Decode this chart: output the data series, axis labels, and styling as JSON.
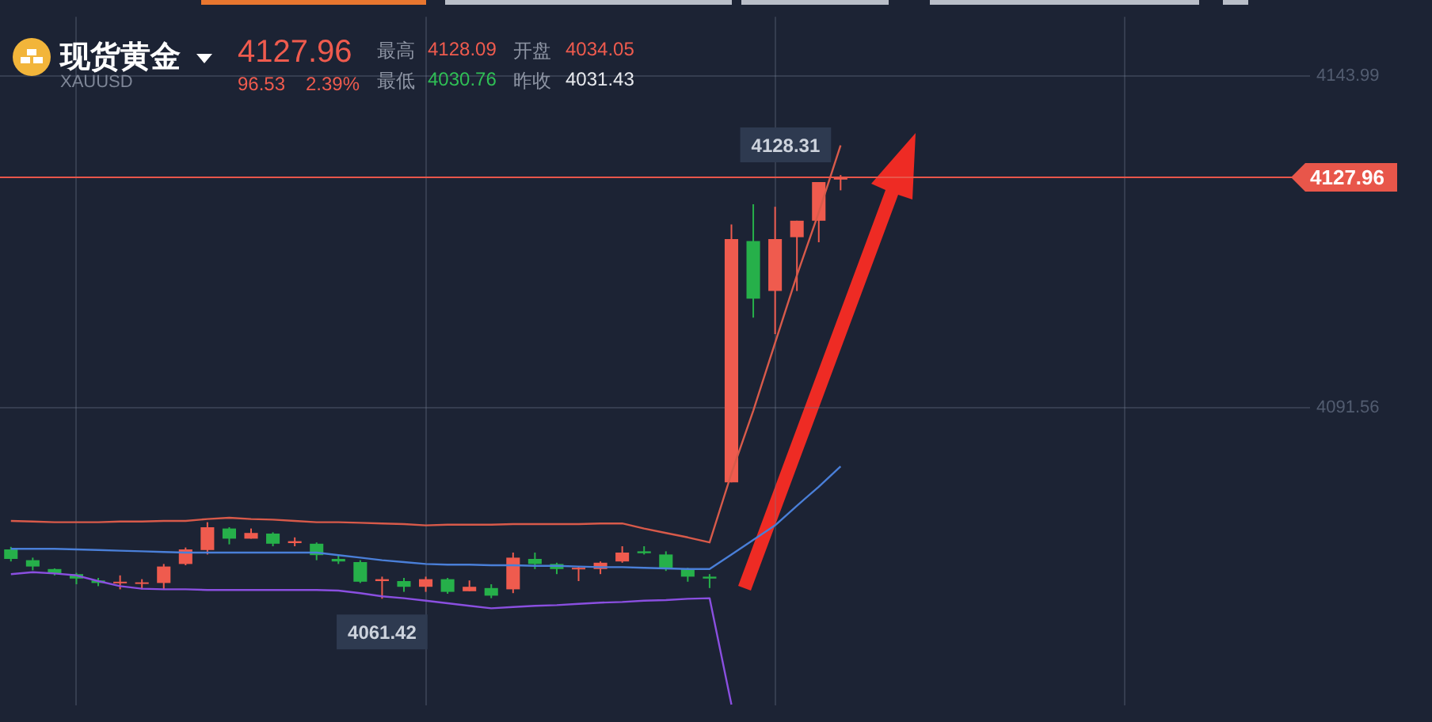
{
  "chart_data": {
    "type": "candlestick",
    "title": "现货黄金",
    "subtitle": "XAUUSD",
    "annotations": [
      "4127.96",
      "96.53",
      "2.39%",
      "最高",
      "4128.09",
      "开盘",
      "4034.05",
      "最低",
      "4030.76",
      "昨收",
      "4031.43",
      {
        "text": "4128.31",
        "y": 4128.31
      },
      {
        "text": "4061.42",
        "y": 4061.42
      }
    ],
    "categories": [
      null,
      null,
      null,
      null,
      null,
      null,
      null,
      null,
      null,
      null,
      null,
      null,
      null,
      null,
      null,
      null,
      null,
      null,
      null,
      null,
      null,
      null,
      null,
      null,
      null,
      null,
      null,
      null,
      null,
      null,
      null,
      null,
      null,
      null,
      null,
      null,
      null,
      null,
      null,
      null,
      null,
      null,
      null,
      null,
      null,
      null,
      null,
      null,
      null,
      null,
      null,
      null,
      null,
      null,
      null,
      null,
      null,
      null,
      null,
      null
    ],
    "ohlc": [
      [
        4069.2,
        4069.6,
        4067.3,
        4067.7
      ],
      [
        4067.5,
        4067.9,
        4065.9,
        4066.5
      ],
      [
        4066.1,
        4066.2,
        4065.1,
        4065.4
      ],
      [
        4065.3,
        4065.5,
        4063.7,
        4064.6
      ],
      [
        4064.3,
        4064.7,
        4063.4,
        4063.9
      ],
      [
        4063.9,
        4065.1,
        4062.9,
        4064.1
      ],
      [
        4063.8,
        4064.5,
        4062.9,
        4064.0
      ],
      [
        4063.9,
        4066.9,
        4062.9,
        4066.5
      ],
      [
        4066.9,
        4069.5,
        4066.7,
        4069.2
      ],
      [
        4069.1,
        4073.5,
        4068.4,
        4072.7
      ],
      [
        4072.5,
        4072.7,
        4070.0,
        4070.9
      ],
      [
        4070.9,
        4072.5,
        4070.9,
        4071.8
      ],
      [
        4071.7,
        4071.9,
        4069.7,
        4070.1
      ],
      [
        4070.2,
        4071.1,
        4069.7,
        4070.5
      ],
      [
        4070.1,
        4070.3,
        4067.5,
        4068.3
      ],
      [
        4067.7,
        4068.4,
        4066.9,
        4067.3
      ],
      [
        4067.2,
        4067.5,
        4063.9,
        4064.1
      ],
      [
        4064.2,
        4064.9,
        4061.42,
        4064.5
      ],
      [
        4064.2,
        4064.7,
        4062.5,
        4063.3
      ],
      [
        4063.3,
        4064.9,
        4062.5,
        4064.5
      ],
      [
        4064.5,
        4064.7,
        4062.2,
        4062.5
      ],
      [
        4062.6,
        4064.3,
        4062.6,
        4063.3
      ],
      [
        4063.1,
        4063.7,
        4061.5,
        4061.9
      ],
      [
        4062.9,
        4068.7,
        4062.3,
        4067.9
      ],
      [
        4067.7,
        4068.7,
        4066.1,
        4066.9
      ],
      [
        4066.9,
        4067.1,
        4065.3,
        4066.1
      ],
      [
        4066.1,
        4066.5,
        4064.2,
        4066.3
      ],
      [
        4066.1,
        4067.3,
        4065.3,
        4067.1
      ],
      [
        4067.3,
        4069.7,
        4067.1,
        4068.7
      ],
      [
        4068.9,
        4069.7,
        4068.4,
        4068.6
      ],
      [
        4068.4,
        4068.9,
        4065.8,
        4066.1
      ],
      [
        4066.1,
        4066.3,
        4064.1,
        4064.9
      ],
      [
        4064.9,
        4065.3,
        4063.1,
        4064.6
      ],
      [
        4079.8,
        4120.5,
        4079.8,
        4118.2
      ],
      [
        4117.9,
        4123.7,
        4105.8,
        4108.8
      ],
      [
        4110.0,
        4123.3,
        4103.2,
        4118.2
      ],
      [
        4118.5,
        4121.1,
        4110.0,
        4121.1
      ],
      [
        4121.1,
        4127.2,
        4117.7,
        4127.2
      ],
      [
        4127.6,
        4128.31,
        4125.9,
        4127.96
      ],
      null,
      null,
      null,
      null,
      null,
      null,
      null,
      null,
      null,
      null,
      null,
      null,
      null,
      null,
      null,
      null,
      null,
      null,
      null,
      null,
      null
    ],
    "colors": [
      "#26b04a",
      "#26b04a",
      "#26b04a",
      "#26b04a",
      "#26b04a",
      "#ef5b4e",
      "#ef5b4e",
      "#ef5b4e",
      "#ef5b4e",
      "#ef5b4e",
      "#26b04a",
      "#ef5b4e",
      "#26b04a",
      "#ef5b4e",
      "#26b04a",
      "#26b04a",
      "#26b04a",
      "#ef5b4e",
      "#26b04a",
      "#ef5b4e",
      "#26b04a",
      "#ef5b4e",
      "#26b04a",
      "#ef5b4e",
      "#26b04a",
      "#26b04a",
      "#ef5b4e",
      "#ef5b4e",
      "#ef5b4e",
      "#26b04a",
      "#26b04a",
      "#26b04a",
      "#26b04a",
      "#ef5b4e",
      "#26b04a",
      "#ef5b4e",
      "#ef5b4e",
      "#ef5b4e",
      "#ef5b4e",
      null,
      null,
      null,
      null,
      null,
      null,
      null,
      null,
      null,
      null,
      null,
      null,
      null,
      null,
      null,
      null,
      null,
      null,
      null,
      null,
      null
    ],
    "series": [
      {
        "type": "line",
        "color": "#d85a4a",
        "values": [
          4073.7,
          4073.6,
          4073.5,
          4073.5,
          4073.5,
          4073.6,
          4073.6,
          4073.7,
          4073.7,
          4074.0,
          4074.2,
          4074.0,
          4073.9,
          4073.7,
          4073.5,
          4073.5,
          4073.4,
          4073.3,
          4073.2,
          4073.0,
          4073.1,
          4073.1,
          4073.1,
          4073.2,
          4073.2,
          4073.2,
          4073.2,
          4073.3,
          4073.3,
          4072.5,
          4071.8,
          4071.1,
          4070.3,
          4081.2,
          4091.1,
          4101.8,
          4112.5,
          4122.4,
          4133.0,
          null,
          null,
          null,
          null,
          null,
          null,
          null,
          null,
          null,
          null,
          null,
          null,
          null,
          null,
          null,
          null,
          null,
          null,
          null,
          null,
          null
        ]
      },
      {
        "type": "line",
        "color": "#4a7fd8",
        "values": [
          4069.3,
          4069.3,
          4069.3,
          4069.2,
          4069.1,
          4069.0,
          4068.9,
          4068.8,
          4068.7,
          4068.7,
          4068.7,
          4068.7,
          4068.7,
          4068.7,
          4068.7,
          4068.3,
          4067.9,
          4067.5,
          4067.2,
          4066.9,
          4066.8,
          4066.8,
          4066.7,
          4066.7,
          4066.6,
          4066.6,
          4066.5,
          4066.4,
          4066.4,
          4066.3,
          4066.2,
          4066.1,
          4066.1,
          4068.4,
          4070.7,
          4073.0,
          4076.1,
          4079.1,
          4082.3,
          null,
          null,
          null,
          null,
          null,
          null,
          null,
          null,
          null,
          null,
          null,
          null,
          null,
          null,
          null,
          null,
          null,
          null,
          null,
          null,
          null
        ]
      },
      {
        "type": "line",
        "color": "#8a4fe0",
        "values": [
          4065.3,
          4065.6,
          4065.4,
          4065.1,
          4064.2,
          4063.4,
          4063.0,
          4062.9,
          4062.9,
          4062.8,
          4062.8,
          4062.8,
          4062.8,
          4062.8,
          4062.8,
          4062.7,
          4062.3,
          4061.8,
          4061.5,
          4061.1,
          4060.7,
          4060.3,
          4059.9,
          4060.1,
          4060.3,
          4060.4,
          4060.6,
          4060.8,
          4060.9,
          4061.1,
          4061.2,
          4061.4,
          4061.5,
          4044.7,
          null,
          null,
          null,
          null,
          null,
          null,
          null,
          null,
          null,
          null,
          null,
          null,
          null,
          null,
          null,
          null,
          null,
          null,
          null,
          null,
          null,
          null,
          null,
          null,
          null,
          null
        ]
      }
    ],
    "ref_lines": [
      {
        "axis": "y",
        "value": 4127.96,
        "label": "4127.96",
        "color": "#e8564a"
      }
    ],
    "ylim": [
      4044.6,
      4153.3
    ],
    "yticks": [
      4143.99,
      4091.56
    ],
    "grid": true,
    "legend": false,
    "tick_labels": "y",
    "marker": "none",
    "line_style": "solid"
  }
}
